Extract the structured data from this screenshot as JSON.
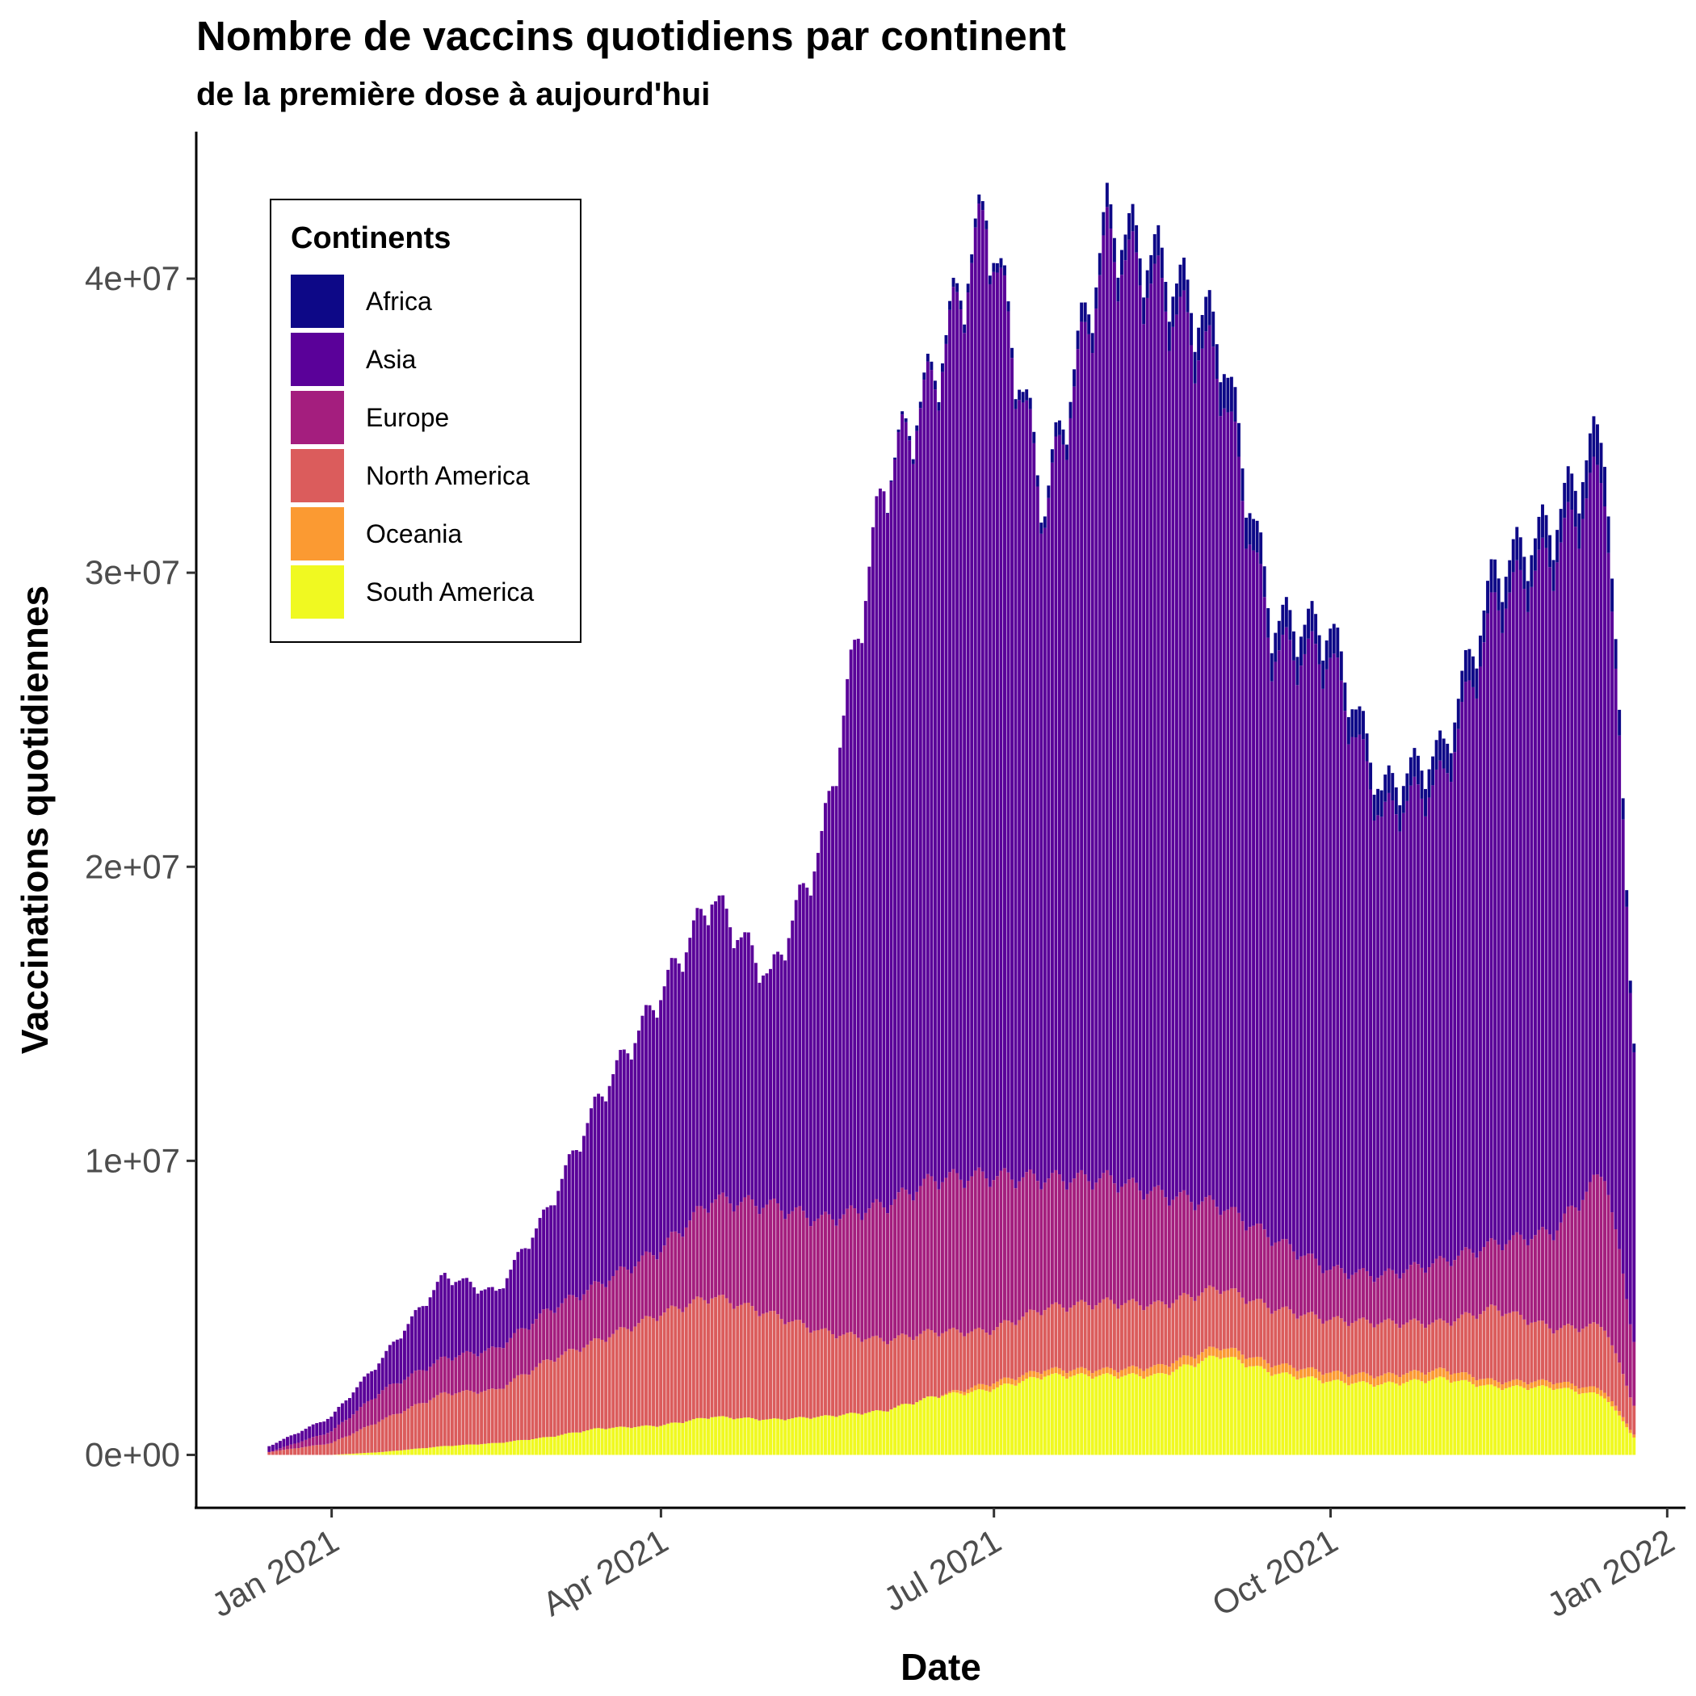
{
  "chart_data": {
    "type": "bar",
    "stacked": true,
    "title": "Nombre de vaccins quotidiens par continent",
    "subtitle": "de la première dose à aujourd'hui",
    "xlabel": "Date",
    "ylabel": "Vaccinations quotidiennes",
    "ylim": [
      -1800000,
      45000000
    ],
    "xlim": [
      "2020-11-25",
      "2022-01-06"
    ],
    "x_ticks": [
      {
        "date": "2021-01-01",
        "label": "Jan 2021"
      },
      {
        "date": "2021-04-01",
        "label": "Apr 2021"
      },
      {
        "date": "2021-07-01",
        "label": "Jul 2021"
      },
      {
        "date": "2021-10-01",
        "label": "Oct 2021"
      },
      {
        "date": "2022-01-01",
        "label": "Jan 2022"
      }
    ],
    "y_ticks": [
      {
        "value": 0,
        "label": "0e+00"
      },
      {
        "value": 10000000,
        "label": "1e+07"
      },
      {
        "value": 20000000,
        "label": "2e+07"
      },
      {
        "value": 30000000,
        "label": "3e+07"
      },
      {
        "value": 40000000,
        "label": "4e+07"
      }
    ],
    "legend": {
      "title": "Continents",
      "position": "top-left"
    },
    "series": [
      {
        "name": "South America",
        "color": "#F0F921"
      },
      {
        "name": "Oceania",
        "color": "#FB9A32"
      },
      {
        "name": "North America",
        "color": "#DB5C5C"
      },
      {
        "name": "Europe",
        "color": "#A41E7E"
      },
      {
        "name": "Asia",
        "color": "#5A0199"
      },
      {
        "name": "Africa",
        "color": "#0D0887"
      }
    ],
    "legend_order": [
      "Africa",
      "Asia",
      "Europe",
      "North America",
      "Oceania",
      "South America"
    ],
    "x": [
      "2020-12-15",
      "2021-01-01",
      "2021-01-15",
      "2021-02-01",
      "2021-02-15",
      "2021-03-01",
      "2021-03-15",
      "2021-04-01",
      "2021-04-15",
      "2021-05-01",
      "2021-05-15",
      "2021-06-01",
      "2021-06-15",
      "2021-06-29",
      "2021-07-15",
      "2021-08-01",
      "2021-08-15",
      "2021-09-01",
      "2021-09-15",
      "2021-10-01",
      "2021-10-15",
      "2021-11-01",
      "2021-11-15",
      "2021-12-01",
      "2021-12-15",
      "2021-12-23"
    ],
    "values": {
      "South America": [
        0,
        0,
        100000,
        300000,
        400000,
        600000,
        900000,
        1000000,
        1300000,
        1200000,
        1300000,
        1500000,
        2000000,
        2200000,
        2700000,
        2700000,
        2700000,
        3400000,
        2800000,
        2500000,
        2400000,
        2600000,
        2300000,
        2300000,
        2000000,
        600000
      ],
      "Oceania": [
        0,
        0,
        0,
        0,
        0,
        0,
        0,
        0,
        0,
        0,
        0,
        0,
        0,
        200000,
        200000,
        200000,
        300000,
        300000,
        300000,
        300000,
        300000,
        300000,
        200000,
        200000,
        200000,
        100000
      ],
      "North America": [
        100000,
        400000,
        1100000,
        1800000,
        1800000,
        2600000,
        3000000,
        3800000,
        4100000,
        3600000,
        2900000,
        2400000,
        2200000,
        1800000,
        2100000,
        2300000,
        2100000,
        2000000,
        1900000,
        1800000,
        1800000,
        1600000,
        2500000,
        1800000,
        2200000,
        1000000
      ],
      "Europe": [
        0,
        400000,
        1000000,
        1200000,
        1400000,
        1700000,
        1900000,
        2200000,
        3300000,
        3700000,
        3800000,
        4600000,
        5200000,
        5300000,
        4400000,
        4200000,
        3800000,
        2800000,
        2400000,
        1700000,
        1600000,
        2100000,
        2200000,
        3300000,
        5300000,
        2200000
      ],
      "Asia": [
        200000,
        500000,
        1100000,
        2800000,
        1900000,
        3400000,
        6300000,
        8700000,
        10300000,
        7700000,
        12800000,
        24600000,
        27200000,
        32600000,
        22600000,
        31800000,
        30700000,
        28300000,
        20000000,
        20800000,
        15600000,
        16400000,
        21700000,
        23000000,
        23900000,
        10000000
      ],
      "Africa": [
        0,
        0,
        0,
        0,
        0,
        0,
        0,
        0,
        0,
        0,
        0,
        0,
        300000,
        300000,
        400000,
        800000,
        1000000,
        1200000,
        1000000,
        1000000,
        900000,
        1000000,
        1100000,
        1100000,
        1400000,
        300000
      ]
    }
  }
}
